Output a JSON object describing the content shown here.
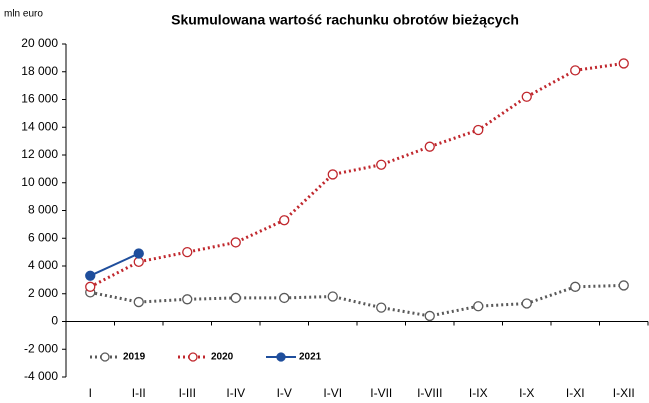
{
  "chart_data": {
    "type": "line",
    "title": "Skumulowana wartość rachunku obrotów bieżących",
    "y_label": "mln euro",
    "categories": [
      "I",
      "I-II",
      "I-III",
      "I-IV",
      "I-V",
      "I-VI",
      "I-VII",
      "I-VIII",
      "I-IX",
      "I-X",
      "I-XI",
      "I-XII"
    ],
    "series": [
      {
        "name": "2019",
        "color": "#595959",
        "dotted": true,
        "filled": false,
        "values": [
          2100,
          1400,
          1600,
          1700,
          1700,
          1800,
          1000,
          400,
          1100,
          1300,
          2500,
          2600
        ]
      },
      {
        "name": "2020",
        "color": "#c0272d",
        "dotted": true,
        "filled": false,
        "values": [
          2500,
          4300,
          5000,
          5700,
          7300,
          10600,
          11300,
          12600,
          13800,
          16200,
          18100,
          18600
        ]
      },
      {
        "name": "2021",
        "color": "#1f4e9c",
        "dotted": false,
        "filled": true,
        "values": [
          3300,
          4900,
          null,
          null,
          null,
          null,
          null,
          null,
          null,
          null,
          null,
          null
        ]
      }
    ],
    "ylim": [
      -4000,
      20000
    ],
    "yticks": [
      {
        "value": -4000,
        "label": "-4 000"
      },
      {
        "value": -2000,
        "label": "-2 000"
      },
      0,
      {
        "value": 2000,
        "label": "2 000"
      },
      {
        "value": 4000,
        "label": "4 000"
      },
      {
        "value": 6000,
        "label": "6 000"
      },
      {
        "value": 8000,
        "label": "8 000"
      },
      {
        "value": 10000,
        "label": "10 000"
      },
      {
        "value": 12000,
        "label": "12 000"
      },
      {
        "value": 14000,
        "label": "14 000"
      },
      {
        "value": 16000,
        "label": "16 000"
      },
      {
        "value": 18000,
        "label": "18 000"
      },
      {
        "value": 20000,
        "label": "20 000"
      }
    ],
    "legend": "lower left"
  }
}
